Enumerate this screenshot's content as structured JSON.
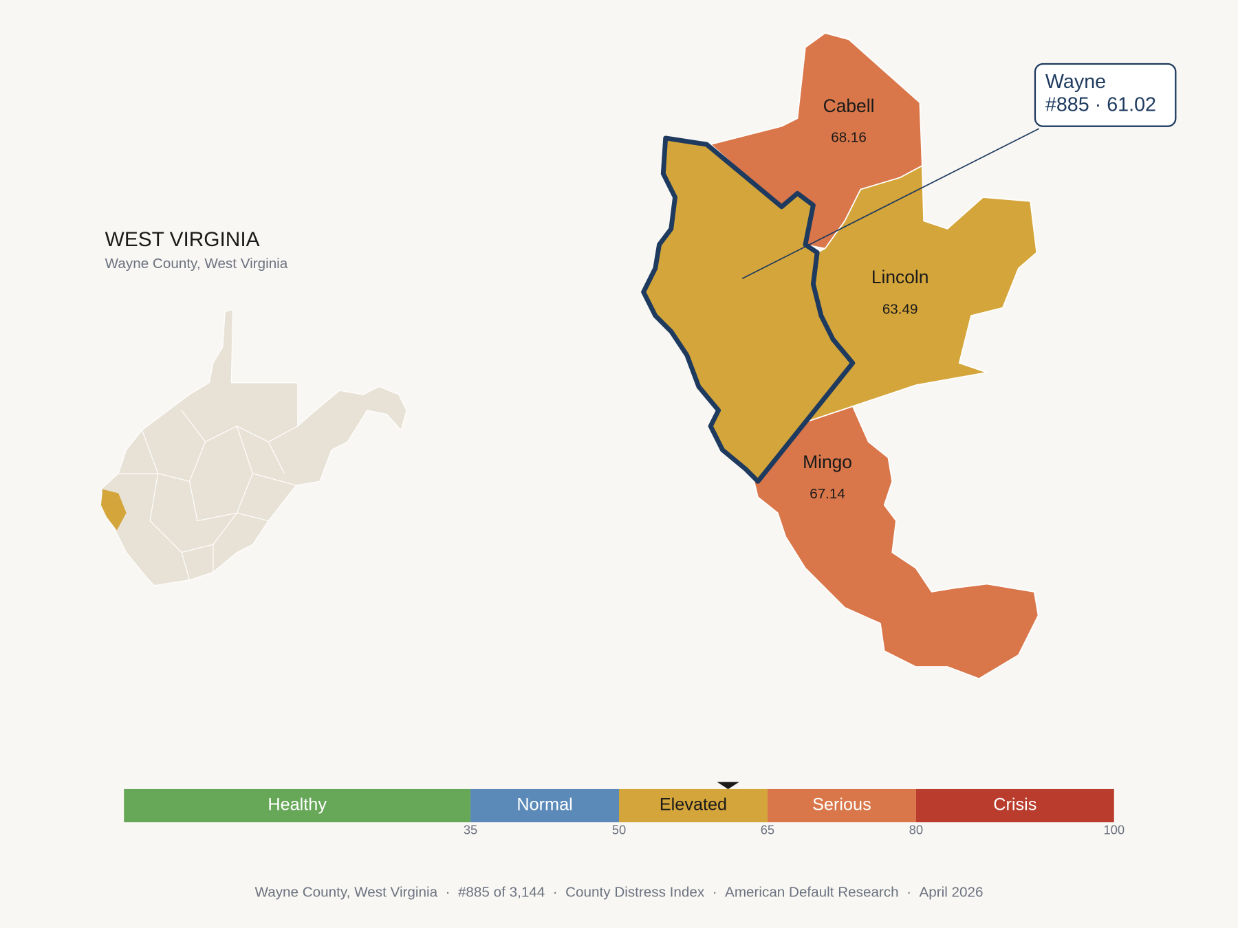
{
  "header": {
    "title": "WEST VIRGINIA",
    "subtitle": "Wayne County, West Virginia"
  },
  "counties": [
    {
      "name": "Cabell",
      "value": 68.16,
      "color": "#d9774a"
    },
    {
      "name": "Lincoln",
      "value": 63.49,
      "color": "#d4a53a"
    },
    {
      "name": "Mingo",
      "value": 67.14,
      "color": "#d9774a"
    },
    {
      "name": "Wayne",
      "value": 61.02,
      "color": "#d4a53a",
      "outline": "#1e3a5f"
    }
  ],
  "callout": {
    "lines": [
      "Wayne",
      "#885 · 61.02"
    ]
  },
  "scale": {
    "xlim": [
      0,
      100
    ],
    "xticks": [
      35,
      50,
      65,
      80,
      100
    ],
    "marker": 61.02,
    "segments": [
      {
        "name": "Healthy",
        "color": "#67a758",
        "text_color": "#ffffff"
      },
      {
        "name": "Normal",
        "color": "#5b8ab8",
        "text_color": "#ffffff"
      },
      {
        "name": "Elevated",
        "color": "#d4a53a",
        "text_color": "#1a1a1a"
      },
      {
        "name": "Serious",
        "color": "#d9774a",
        "text_color": "#ffffff"
      },
      {
        "name": "Crisis",
        "color": "#b93c2c",
        "text_color": "#ffffff"
      }
    ]
  },
  "footer": {
    "separator": "·",
    "parts": [
      "Wayne County, West Virginia",
      "#885 of 3,144",
      "County Distress Index",
      "American Default Research",
      "April 2026"
    ]
  }
}
